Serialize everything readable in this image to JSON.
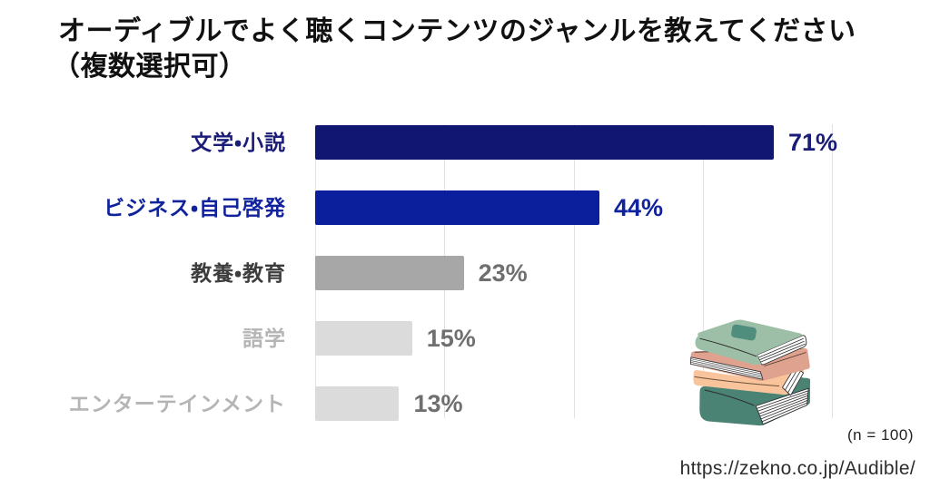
{
  "title": {
    "line1": "オーディブルでよく聴くコンテンツのジャンルを教えてください",
    "line2": "（複数選択可）",
    "full": "オーディブルでよく聴くコンテンツのジャンルを教えてください（複数選択可）"
  },
  "chart_data": {
    "type": "bar",
    "orientation": "horizontal",
    "title": "オーディブルでよく聴くコンテンツのジャンルを教えてください（複数選択可）",
    "categories": [
      "文学・小説",
      "ビジネス・自己啓発",
      "教養・教育",
      "語学",
      "エンターテインメント"
    ],
    "values": [
      71,
      44,
      23,
      15,
      13
    ],
    "value_labels": [
      "71%",
      "44%",
      "23%",
      "15%",
      "13%"
    ],
    "value_suffix": "%",
    "xlim": [
      0,
      80
    ],
    "gridline_step": 20,
    "grid": true,
    "legend": false,
    "xlabel": "",
    "ylabel": "",
    "bar_colors": [
      "#121673",
      "#0b1e9b",
      "#a7a7a7",
      "#dbdbdb",
      "#dbdbdb"
    ],
    "label_colors": [
      "#1a1c78",
      "#10239d",
      "#3d3d3d",
      "#b5b5b5",
      "#b5b5b5"
    ],
    "value_label_colors": [
      "#1a1c78",
      "#10239d",
      "#6f6f6f",
      "#6f6f6f",
      "#6f6f6f"
    ],
    "gridline_color": "#e2e2e2"
  },
  "notes": {
    "sample_size": "(n = 100)",
    "source_url": "https://zekno.co.jp/Audible/"
  },
  "illustration": {
    "name": "stack-of-books",
    "colors": {
      "sage": "#9dbfa7",
      "sage_dark": "#8db39a",
      "patch_teal": "#4f8d7c",
      "pink": "#dfa28e",
      "peach": "#f9c39c",
      "teal": "#4a8374",
      "outline": "#333333",
      "pages": "#ffffff"
    }
  }
}
